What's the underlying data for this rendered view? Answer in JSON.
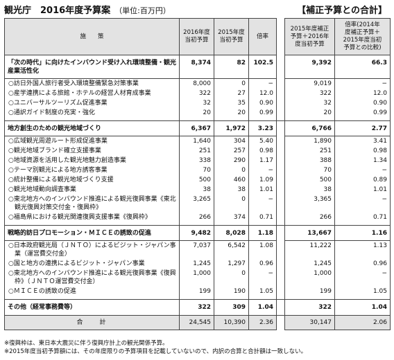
{
  "header": {
    "title": "観光庁　2016年度予算案",
    "unit": "（単位:百万円）",
    "right_title": "【補正予算との合計】"
  },
  "table": {
    "columns": [
      "施　　策",
      "2016年度\n当初予算",
      "2015年度\n当初予算",
      "倍率",
      "2015年度補正\n予算＋2016年\n度当初予算",
      "倍率(2014年\n度補正予算＋\n2015年度当初\n予算との比較)"
    ],
    "sections": [
      {
        "label": "「次の時代」に向けたインバウンド受け入れ環境整備・観光産業活性化",
        "values": [
          "8,374",
          "82",
          "102.5",
          "9,392",
          "66.3"
        ],
        "items": [
          {
            "label": "○訪日外国人旅行者受入環境整備緊急対策事業",
            "values": [
              "8,000",
              "0",
              "−",
              "9,019",
              "−"
            ]
          },
          {
            "label": "○産学連携による旅館・ホテルの経営人材育成事業",
            "values": [
              "322",
              "27",
              "12.0",
              "322",
              "12.0"
            ]
          },
          {
            "label": "○ユニバーサルツーリズム促進事業",
            "values": [
              "32",
              "35",
              "0.90",
              "32",
              "0.90"
            ]
          },
          {
            "label": "○通訳ガイド制度の充実・強化",
            "values": [
              "20",
              "20",
              "0.99",
              "20",
              "0.99"
            ]
          }
        ]
      },
      {
        "label": "地方創生のための観光地域づくり",
        "values": [
          "6,367",
          "1,972",
          "3.23",
          "6,766",
          "2.77"
        ],
        "items": [
          {
            "label": "○広域観光周遊ルート形成促進事業",
            "values": [
              "1,640",
              "304",
              "5.40",
              "1,890",
              "3.41"
            ]
          },
          {
            "label": "○観光地域ブランド確立支援事業",
            "values": [
              "251",
              "257",
              "0.98",
              "251",
              "0.98"
            ]
          },
          {
            "label": "○地域資源を活用した観光地魅力創造事業",
            "values": [
              "338",
              "290",
              "1.17",
              "388",
              "1.34"
            ]
          },
          {
            "label": "○テーマ別観光による地方誘客事業",
            "values": [
              "70",
              "0",
              "−",
              "70",
              "−"
            ]
          },
          {
            "label": "○統計整備による観光地域づくり支援",
            "values": [
              "500",
              "460",
              "1.09",
              "500",
              "0.89"
            ]
          },
          {
            "label": "○観光地域動向調査事業",
            "values": [
              "38",
              "38",
              "1.01",
              "38",
              "1.01"
            ]
          },
          {
            "label": "○東北地方へのインバウンド推進による観光復興事業《東北観光復興対策交付金・復興枠》",
            "values": [
              "3,265",
              "0",
              "−",
              "3,365",
              "−"
            ]
          },
          {
            "label": "○福島県における観光関連復興支援事業《復興枠》",
            "values": [
              "266",
              "374",
              "0.71",
              "266",
              "0.71"
            ]
          }
        ]
      },
      {
        "label": "戦略的訪日プロモーション・ＭＩＣＥの誘致の促進",
        "values": [
          "9,482",
          "8,028",
          "1.18",
          "13,667",
          "1.16"
        ],
        "items": [
          {
            "label": "○日本政府観光局（ＪＮＴＯ）によるビジット・ジャパン事業（運営費交付金）",
            "values": [
              "7,037",
              "6,542",
              "1.08",
              "11,222",
              "1.13"
            ]
          },
          {
            "label": "○国と地方の連携によるビジット・ジャパン事業",
            "values": [
              "1,245",
              "1,297",
              "0.96",
              "1,245",
              "0.96"
            ]
          },
          {
            "label": "○東北地方へのインバウンド推進による観光復興事業《復興枠》（ＪＮＴＯ運営費交付金）",
            "values": [
              "1,000",
              "0",
              "−",
              "1,000",
              "−"
            ]
          },
          {
            "label": "○ＭＩＣＥの誘致の促進",
            "values": [
              "199",
              "190",
              "1.05",
              "199",
              "1.05"
            ]
          }
        ]
      },
      {
        "label": "その他（経常事務費等）",
        "values": [
          "322",
          "309",
          "1.04",
          "322",
          "1.04"
        ],
        "items": []
      }
    ],
    "total": {
      "label": "合　　計",
      "values": [
        "24,545",
        "10,390",
        "2.36",
        "30,147",
        "2.06"
      ]
    }
  },
  "notes": [
    "※復興枠は、東日本大震災に伴う復興庁計上の観光関係予算。",
    "※2015年度当初予算額には、その年度限りの予算項目を記載していないので、内訳の合算と合計額は一致しない。"
  ]
}
